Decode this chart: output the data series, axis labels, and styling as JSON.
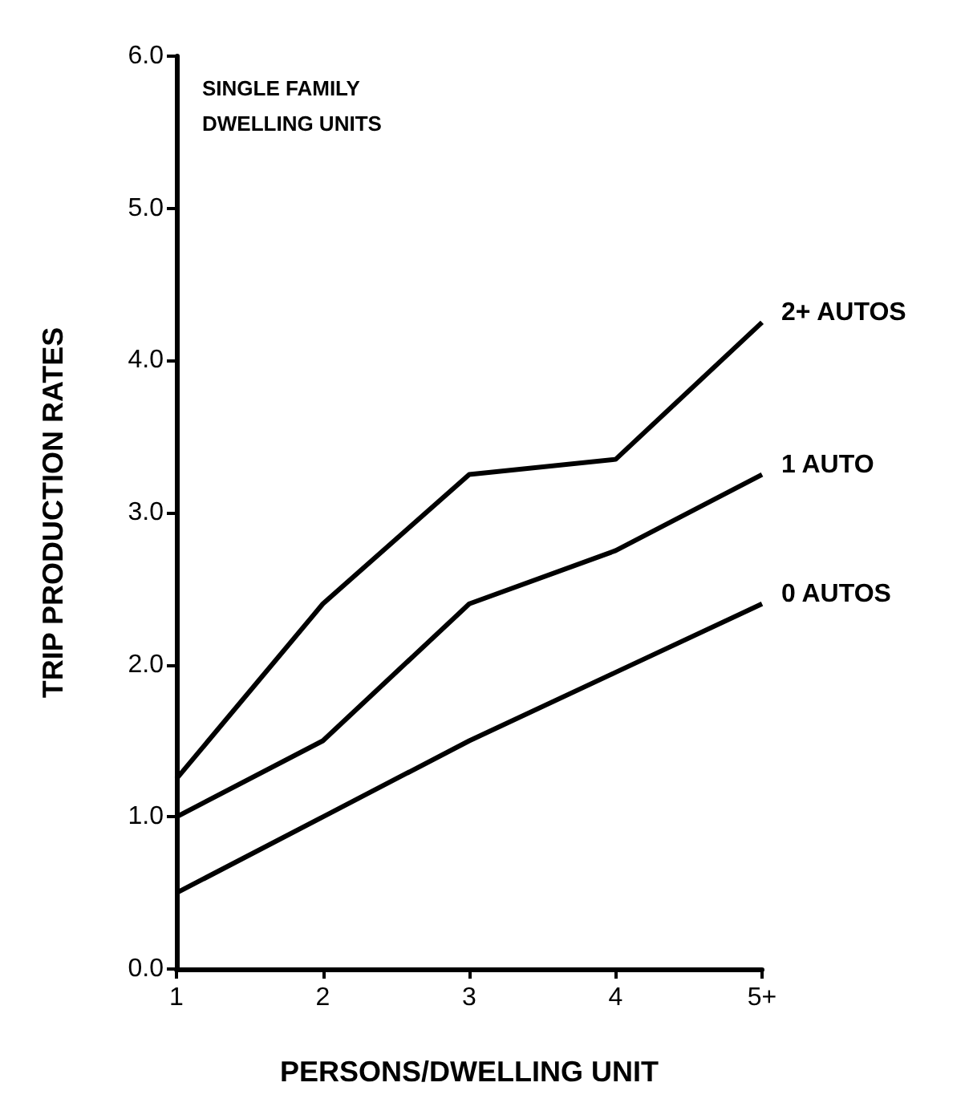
{
  "chart_data": {
    "type": "line",
    "xlabel": "PERSONS/DWELLING UNIT",
    "ylabel": "TRIP PRODUCTION RATES",
    "annotations": [
      "SINGLE FAMILY DWELLING UNITS"
    ],
    "categories": [
      "1",
      "2",
      "3",
      "4",
      "5+"
    ],
    "ylim": [
      0,
      6
    ],
    "yticks": [
      {
        "value": 0,
        "label": "0.0"
      },
      {
        "value": 1,
        "label": "1.0"
      },
      {
        "value": 2,
        "label": "2.0"
      },
      {
        "value": 3,
        "label": "3.0"
      },
      {
        "value": 4,
        "label": "4.0"
      },
      {
        "value": 5,
        "label": "5.0"
      },
      {
        "value": 6,
        "label": "6.0"
      }
    ],
    "series": [
      {
        "name": "2+ AUTOS",
        "color": "#000000",
        "values": [
          1.25,
          2.4,
          3.25,
          3.35,
          4.25
        ]
      },
      {
        "name": "1 AUTO",
        "color": "#000000",
        "values": [
          1.0,
          1.5,
          2.4,
          2.75,
          3.25
        ]
      },
      {
        "name": "0 AUTOS",
        "color": "#000000",
        "values": [
          0.5,
          1.0,
          1.5,
          1.95,
          2.4
        ]
      }
    ],
    "grid": false,
    "legend": false,
    "marker": "none",
    "line_style": "solid"
  }
}
